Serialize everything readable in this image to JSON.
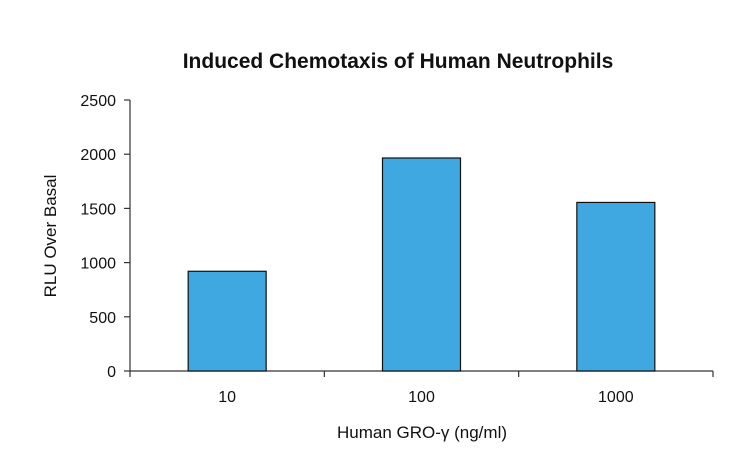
{
  "chart_data": {
    "type": "bar",
    "title": "Induced Chemotaxis of Human Neutrophils",
    "xlabel": "Human GRO-γ (ng/ml)",
    "ylabel": "RLU Over Basal",
    "categories": [
      "10",
      "100",
      "1000"
    ],
    "values": [
      920,
      1965,
      1555
    ],
    "ylim": [
      0,
      2500
    ],
    "yticks": [
      "0",
      "500",
      "1000",
      "1500",
      "2000",
      "2500"
    ],
    "grid": false,
    "legend": "none",
    "bar_color": "#40a8e0"
  }
}
